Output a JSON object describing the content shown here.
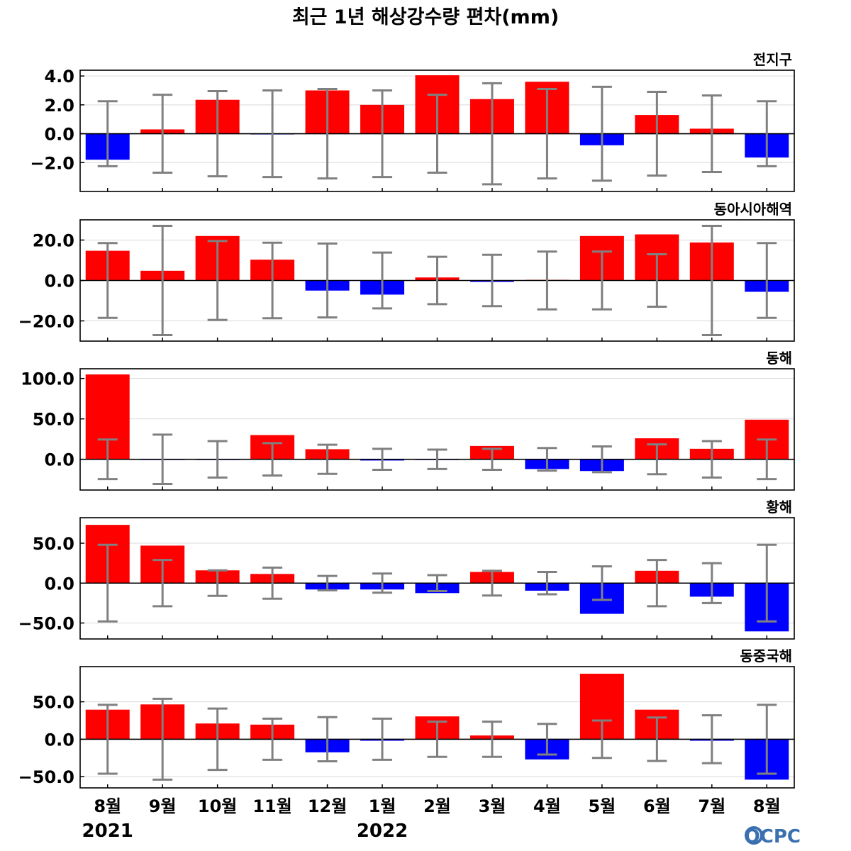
{
  "colors": {
    "positive": "#ff0000",
    "negative": "#0000ff",
    "errorbar": "#808080",
    "grid": "#d9d9d9",
    "logo": "#3a6fb0"
  },
  "logo": {
    "text": "OCPC"
  },
  "chart_data": {
    "type": "bar",
    "title": "최근 1년 해상강수량 편차(mm)",
    "grid": true,
    "categories": [
      "8월",
      "9월",
      "10월",
      "11월",
      "12월",
      "1월",
      "2월",
      "3월",
      "4월",
      "5월",
      "6월",
      "7월",
      "8월"
    ],
    "year_labels": [
      {
        "text": "2021",
        "category_index": 0
      },
      {
        "text": "2022",
        "category_index": 5
      }
    ],
    "panels": [
      {
        "name": "전지구",
        "ylim": [
          -4.0,
          4.4
        ],
        "yticks": [
          -2.0,
          0.0,
          2.0,
          4.0
        ],
        "tick_labels": [
          "−2.0",
          "0.0",
          "2.0",
          "4.0"
        ],
        "values": [
          -1.8,
          0.3,
          2.35,
          -0.05,
          3.0,
          2.0,
          4.05,
          2.4,
          3.6,
          -0.8,
          1.3,
          0.35,
          -1.65
        ],
        "error": [
          2.25,
          2.7,
          2.95,
          3.0,
          3.1,
          3.0,
          2.7,
          3.5,
          3.1,
          3.25,
          2.9,
          2.65,
          2.25
        ]
      },
      {
        "name": "동아시아해역",
        "ylim": [
          -30.0,
          30.0
        ],
        "yticks": [
          -20.0,
          0.0,
          20.0
        ],
        "tick_labels": [
          "−20.0",
          "0.0",
          "20.0"
        ],
        "values": [
          14.7,
          4.8,
          22.0,
          10.3,
          -5.0,
          -7.0,
          1.5,
          -0.7,
          0.3,
          22.0,
          22.8,
          18.8,
          -5.6
        ],
        "error": [
          18.5,
          27.0,
          19.5,
          18.7,
          18.3,
          13.8,
          11.7,
          12.7,
          14.3,
          14.3,
          13.0,
          27.0,
          18.5
        ]
      },
      {
        "name": "동해",
        "ylim": [
          -38.0,
          112.0
        ],
        "yticks": [
          0.0,
          50.0,
          100.0
        ],
        "tick_labels": [
          "0.0",
          "50.0",
          "100.0"
        ],
        "values": [
          105.0,
          -0.5,
          -0.5,
          30.0,
          12.5,
          -1.5,
          -0.5,
          16.5,
          -12.0,
          -14.5,
          26.0,
          13.0,
          49.0
        ],
        "error": [
          24.5,
          30.5,
          22.5,
          20.0,
          18.0,
          13.0,
          12.0,
          13.0,
          14.0,
          16.0,
          18.5,
          22.5,
          24.5
        ]
      },
      {
        "name": "황해",
        "ylim": [
          -70.0,
          82.0
        ],
        "yticks": [
          -50.0,
          0.0,
          50.0
        ],
        "tick_labels": [
          "−50.0",
          "0.0",
          "50.0"
        ],
        "values": [
          73.0,
          47.0,
          16.0,
          11.5,
          -8.0,
          -8.0,
          -12.5,
          14.0,
          -9.5,
          -38.5,
          15.5,
          -17.0,
          -60.5
        ],
        "error": [
          48.0,
          29.0,
          16.0,
          19.5,
          9.0,
          12.0,
          10.0,
          15.5,
          14.0,
          21.0,
          29.0,
          25.0,
          48.0
        ]
      },
      {
        "name": "동중국해",
        "ylim": [
          -65.0,
          97.0
        ],
        "yticks": [
          -50.0,
          0.0,
          50.0
        ],
        "tick_labels": [
          "−50.0",
          "0.0",
          "50.0"
        ],
        "values": [
          39.5,
          46.5,
          21.0,
          19.5,
          -17.5,
          -2.0,
          30.5,
          5.0,
          -27.0,
          87.5,
          39.5,
          -2.0,
          -54.0
        ],
        "error": [
          46.0,
          54.0,
          41.0,
          27.5,
          29.5,
          27.5,
          23.5,
          23.5,
          20.5,
          25.0,
          29.0,
          32.0,
          46.0
        ]
      }
    ]
  }
}
